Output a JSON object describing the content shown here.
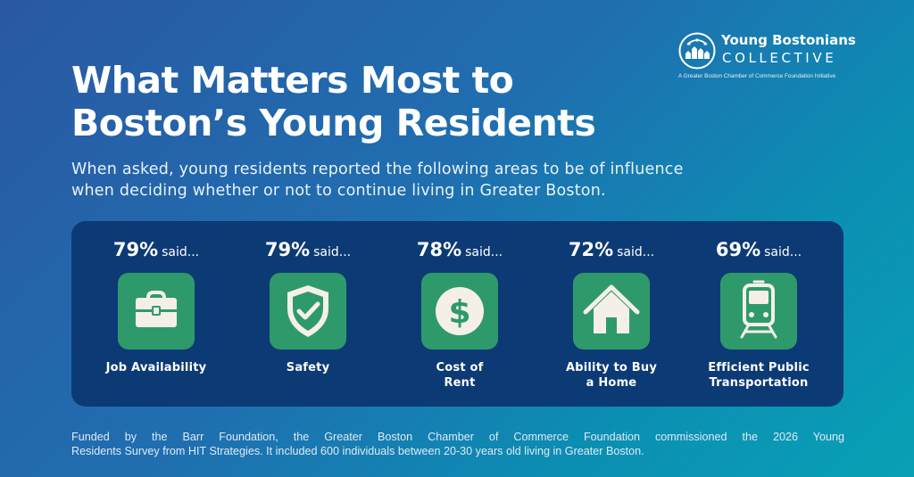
{
  "title": {
    "line1": "What Matters Most to",
    "line2": "Boston’s Young Residents"
  },
  "subtitle": {
    "line1": "When asked, young residents reported the following areas to be of influence",
    "line2": "when deciding whether or not to continue living in Greater Boston."
  },
  "logo": {
    "name": "Young Bostonians",
    "collective": "COLLECTIVE",
    "tagline": "A Greater Boston Chamber of Commerce Foundation Initiative"
  },
  "stats": [
    {
      "percent": "79%",
      "said": "said...",
      "label_line1": "Job Availability",
      "label_line2": "",
      "icon": "briefcase-icon"
    },
    {
      "percent": "79%",
      "said": "said...",
      "label_line1": "Safety",
      "label_line2": "",
      "icon": "shield-check-icon"
    },
    {
      "percent": "78%",
      "said": "said...",
      "label_line1": "Cost of",
      "label_line2": "Rent",
      "icon": "dollar-icon"
    },
    {
      "percent": "72%",
      "said": "said...",
      "label_line1": "Ability to Buy",
      "label_line2": "a Home",
      "icon": "house-icon"
    },
    {
      "percent": "69%",
      "said": "said...",
      "label_line1": "Efficient Public",
      "label_line2": "Transportation",
      "icon": "train-icon"
    }
  ],
  "footer": {
    "line1": "Funded by the Barr Foundation, the Greater Boston Chamber of Commerce Foundation commissioned the 2026 Young",
    "line2": "Residents Survey from HIT Strategies. It included 600 individuals between 20-30 years old living in Greater Boston."
  },
  "colors": {
    "panel": "#0c3a74",
    "icon_tile": "#2e9a6c",
    "icon_fill": "#f5f0e6",
    "text": "#ffffff"
  }
}
